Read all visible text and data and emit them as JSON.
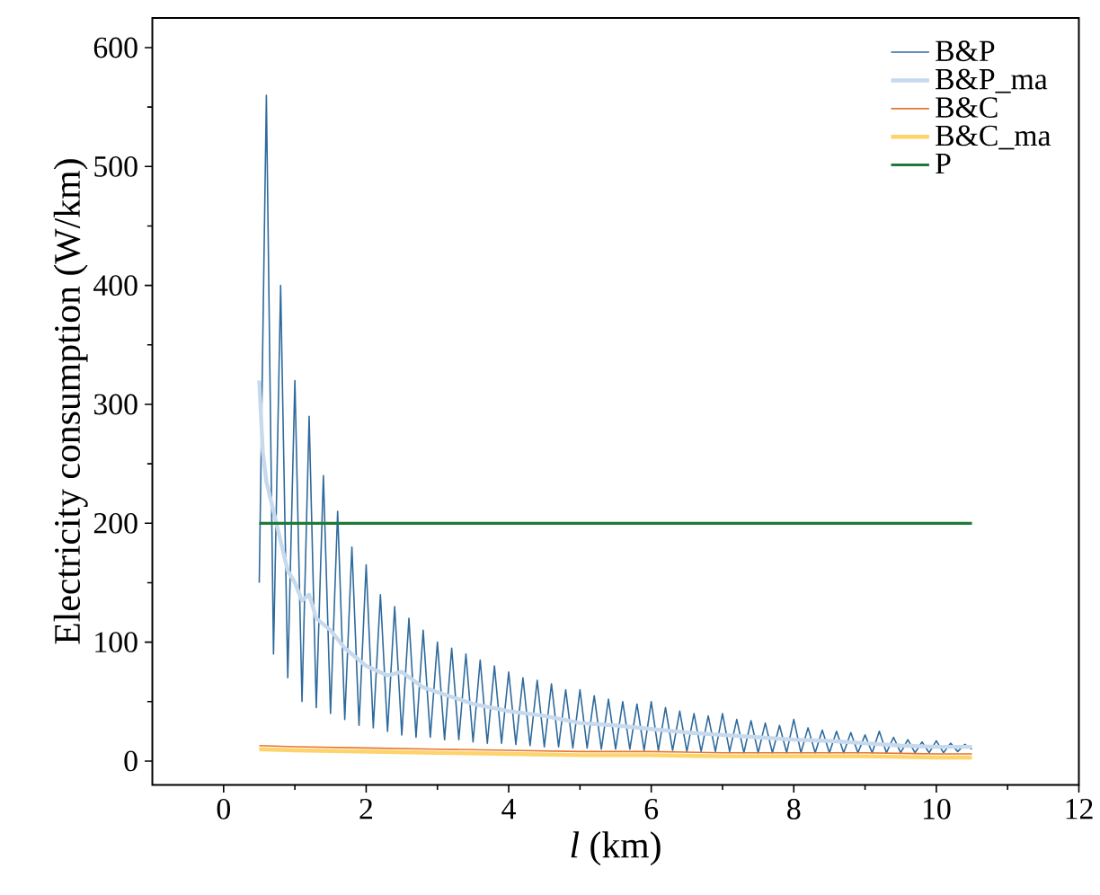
{
  "chart_data": {
    "type": "line",
    "xlabel": "*l* (km)",
    "ylabel": "Electricity consumption (W/km)",
    "xlim": [
      -1,
      12
    ],
    "ylim": [
      -20,
      625
    ],
    "xticks": [
      0,
      2,
      4,
      6,
      8,
      10,
      12
    ],
    "yticks": [
      0,
      100,
      200,
      300,
      400,
      500,
      600
    ],
    "legend": "top right",
    "series": [
      {
        "name": "B&P",
        "color": "#2e6a9c",
        "x": [
          0.5,
          0.6,
          0.7,
          0.8,
          0.9,
          1.0,
          1.1,
          1.2,
          1.3,
          1.4,
          1.5,
          1.6,
          1.7,
          1.8,
          1.9,
          2.0,
          2.1,
          2.2,
          2.3,
          2.4,
          2.5,
          2.6,
          2.7,
          2.8,
          2.9,
          3.0,
          3.1,
          3.2,
          3.3,
          3.4,
          3.5,
          3.6,
          3.7,
          3.8,
          3.9,
          4.0,
          4.1,
          4.2,
          4.3,
          4.4,
          4.5,
          4.6,
          4.7,
          4.8,
          4.9,
          5.0,
          5.1,
          5.2,
          5.3,
          5.4,
          5.5,
          5.6,
          5.7,
          5.8,
          5.9,
          6.0,
          6.1,
          6.2,
          6.3,
          6.4,
          6.5,
          6.6,
          6.7,
          6.8,
          6.9,
          7.0,
          7.1,
          7.2,
          7.3,
          7.4,
          7.5,
          7.6,
          7.7,
          7.8,
          7.9,
          8.0,
          8.1,
          8.2,
          8.3,
          8.4,
          8.5,
          8.6,
          8.7,
          8.8,
          8.9,
          9.0,
          9.1,
          9.2,
          9.3,
          9.4,
          9.5,
          9.6,
          9.7,
          9.8,
          9.9,
          10.0,
          10.1,
          10.2,
          10.3,
          10.4,
          10.5
        ],
        "values": [
          150,
          560,
          90,
          400,
          70,
          320,
          50,
          290,
          45,
          240,
          40,
          210,
          35,
          180,
          30,
          165,
          28,
          140,
          25,
          130,
          22,
          120,
          20,
          110,
          20,
          100,
          18,
          95,
          18,
          90,
          16,
          85,
          15,
          80,
          15,
          75,
          14,
          70,
          13,
          68,
          12,
          65,
          12,
          60,
          11,
          60,
          11,
          55,
          10,
          52,
          10,
          50,
          10,
          48,
          9,
          50,
          9,
          45,
          9,
          42,
          8,
          40,
          8,
          38,
          8,
          40,
          8,
          35,
          7,
          34,
          7,
          32,
          7,
          30,
          7,
          35,
          7,
          28,
          7,
          26,
          7,
          25,
          7,
          24,
          7,
          22,
          7,
          25,
          7,
          20,
          7,
          18,
          7,
          16,
          7,
          17,
          7,
          15,
          8,
          14,
          10
        ]
      },
      {
        "name": "B&P_ma",
        "color": "#c6d9ed",
        "x": [
          0.5,
          0.55,
          0.6,
          0.7,
          0.8,
          0.9,
          1.0,
          1.1,
          1.2,
          1.3,
          1.5,
          1.7,
          2.0,
          2.3,
          2.5,
          2.8,
          3.0,
          3.5,
          4.0,
          4.5,
          5.0,
          5.5,
          6.0,
          6.5,
          7.0,
          7.5,
          8.0,
          8.5,
          9.0,
          9.5,
          10.0,
          10.5
        ],
        "values": [
          320,
          260,
          235,
          210,
          185,
          160,
          150,
          135,
          140,
          120,
          110,
          95,
          80,
          72,
          75,
          62,
          58,
          48,
          42,
          38,
          32,
          30,
          27,
          24,
          22,
          20,
          18,
          17,
          15,
          13,
          12,
          12
        ]
      },
      {
        "name": "B&C",
        "color": "#e8762d",
        "x": [
          0.5,
          1,
          2,
          3,
          4,
          5,
          6,
          7,
          8,
          9,
          10,
          10.5
        ],
        "values": [
          13,
          12,
          11,
          10,
          9,
          8,
          8,
          7,
          7,
          7,
          6,
          6
        ]
      },
      {
        "name": "B&C_ma",
        "color": "#fdd36a",
        "x": [
          0.5,
          1,
          2,
          3,
          4,
          5,
          6,
          7,
          8,
          9,
          10,
          10.5
        ],
        "values": [
          10,
          9,
          8,
          7,
          6,
          5,
          5,
          4,
          4,
          4,
          3,
          3
        ]
      },
      {
        "name": "P",
        "color": "#1e7a3a",
        "x": [
          0.5,
          10.5
        ],
        "values": [
          200,
          200
        ]
      }
    ]
  }
}
